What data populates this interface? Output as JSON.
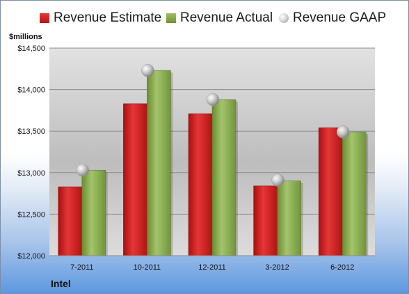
{
  "legend": {
    "estimate_label": "Revenue Estimate",
    "actual_label": "Revenue Actual",
    "gaap_label": "Revenue GAAP"
  },
  "unit_label": "$millions",
  "company": "Intel",
  "colors": {
    "estimate": "#c8201f",
    "actual": "#86a84a",
    "gaap": "#c0c0c0"
  },
  "chart_data": {
    "type": "bar",
    "title": "",
    "xlabel": "",
    "ylabel": "$millions",
    "categories": [
      "7-2011",
      "10-2011",
      "12-2011",
      "3-2012",
      "6-2012"
    ],
    "series": [
      {
        "name": "Revenue Estimate",
        "type": "bar",
        "values": [
          12830,
          13830,
          13710,
          12840,
          13540
        ]
      },
      {
        "name": "Revenue Actual",
        "type": "bar",
        "values": [
          13030,
          14230,
          13880,
          12900,
          13490
        ]
      },
      {
        "name": "Revenue GAAP",
        "type": "scatter",
        "values": [
          13030,
          14230,
          13880,
          12910,
          13490
        ]
      }
    ],
    "ylim": [
      12000,
      14500
    ],
    "y_ticks": [
      "$12,000",
      "$12,500",
      "$13,000",
      "$13,500",
      "$14,000",
      "$14,500"
    ],
    "y_tick_values": [
      12000,
      12500,
      13000,
      13500,
      14000,
      14500
    ],
    "grid": true,
    "legend_position": "top"
  }
}
